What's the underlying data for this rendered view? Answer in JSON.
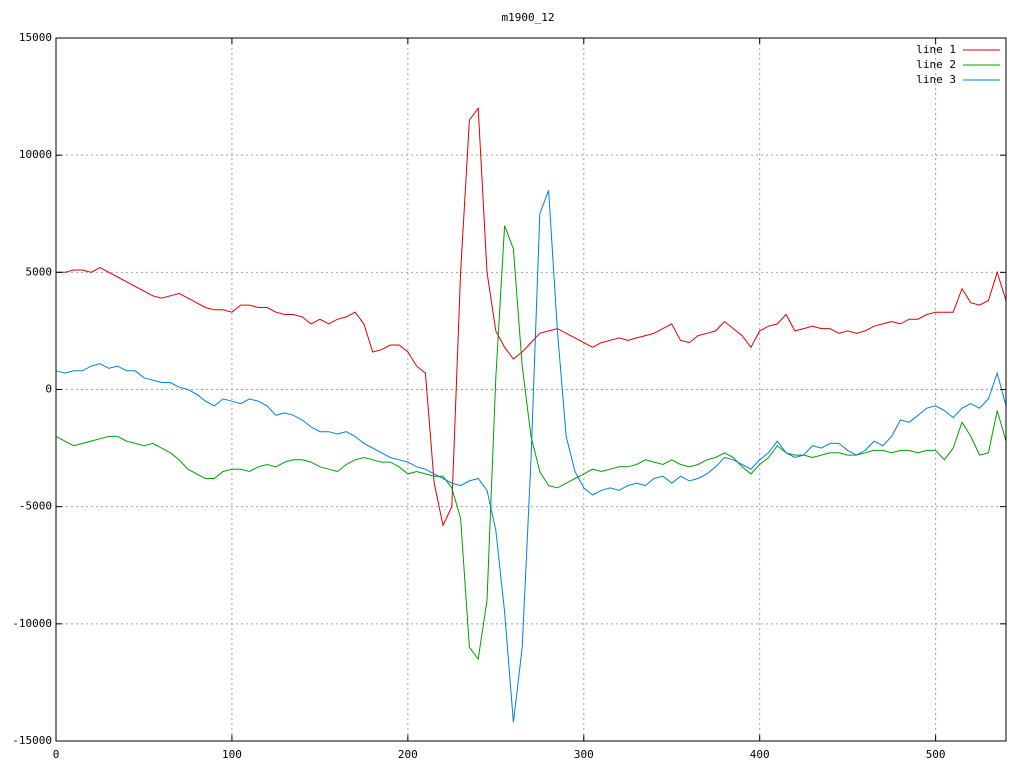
{
  "chart_data": {
    "type": "line",
    "title": "m1900_12",
    "x": [
      0,
      5,
      10,
      15,
      20,
      25,
      30,
      35,
      40,
      45,
      50,
      55,
      60,
      65,
      70,
      75,
      80,
      85,
      90,
      95,
      100,
      105,
      110,
      115,
      120,
      125,
      130,
      135,
      140,
      145,
      150,
      155,
      160,
      165,
      170,
      175,
      180,
      185,
      190,
      195,
      200,
      205,
      210,
      215,
      220,
      225,
      230,
      235,
      240,
      245,
      250,
      255,
      260,
      265,
      270,
      275,
      280,
      285,
      290,
      295,
      300,
      305,
      310,
      315,
      320,
      325,
      330,
      335,
      340,
      345,
      350,
      355,
      360,
      365,
      370,
      375,
      380,
      385,
      390,
      395,
      400,
      405,
      410,
      415,
      420,
      425,
      430,
      435,
      440,
      445,
      450,
      455,
      460,
      465,
      470,
      475,
      480,
      485,
      490,
      495,
      500,
      505,
      510,
      515,
      520,
      525,
      530,
      535,
      540
    ],
    "series": [
      {
        "name": "line 1",
        "color": "#e00000",
        "values": [
          5000,
          5000,
          5100,
          5100,
          5000,
          5200,
          5000,
          4800,
          4600,
          4400,
          4200,
          4000,
          3900,
          4000,
          4100,
          3900,
          3700,
          3500,
          3400,
          3400,
          3300,
          3600,
          3600,
          3500,
          3500,
          3300,
          3200,
          3200,
          3100,
          2800,
          3000,
          2800,
          3000,
          3100,
          3300,
          2800,
          1600,
          1700,
          1900,
          1900,
          1600,
          1000,
          700,
          -4000,
          -5800,
          -5000,
          5000,
          11500,
          12000,
          5000,
          2500,
          1800,
          1300,
          1600,
          2000,
          2400,
          2500,
          2600,
          2400,
          2200,
          2000,
          1800,
          2000,
          2100,
          2200,
          2100,
          2200,
          2300,
          2400,
          2600,
          2800,
          2100,
          2000,
          2300,
          2400,
          2500,
          2900,
          2600,
          2300,
          1800,
          2500,
          2700,
          2800,
          3200,
          2500,
          2600,
          2700,
          2600,
          2600,
          2400,
          2500,
          2400,
          2500,
          2700,
          2800,
          2900,
          2800,
          3000,
          3000,
          3200,
          3300,
          3300,
          3300,
          4300,
          3700,
          3600,
          3800,
          5000,
          3800
        ]
      },
      {
        "name": "line 2",
        "color": "#00a000",
        "values": [
          -2000,
          -2200,
          -2400,
          -2300,
          -2200,
          -2100,
          -2000,
          -2000,
          -2200,
          -2300,
          -2400,
          -2300,
          -2500,
          -2700,
          -3000,
          -3400,
          -3600,
          -3800,
          -3800,
          -3500,
          -3400,
          -3400,
          -3500,
          -3300,
          -3200,
          -3300,
          -3100,
          -3000,
          -3000,
          -3100,
          -3300,
          -3400,
          -3500,
          -3200,
          -3000,
          -2900,
          -3000,
          -3100,
          -3100,
          -3300,
          -3600,
          -3500,
          -3600,
          -3700,
          -3700,
          -4200,
          -5500,
          -11000,
          -11500,
          -9000,
          500,
          7000,
          6000,
          1000,
          -2000,
          -3500,
          -4100,
          -4200,
          -4000,
          -3800,
          -3600,
          -3400,
          -3500,
          -3400,
          -3300,
          -3300,
          -3200,
          -3000,
          -3100,
          -3200,
          -3000,
          -3200,
          -3300,
          -3200,
          -3000,
          -2900,
          -2700,
          -2900,
          -3300,
          -3600,
          -3200,
          -2900,
          -2400,
          -2700,
          -2800,
          -2800,
          -2900,
          -2800,
          -2700,
          -2700,
          -2800,
          -2800,
          -2700,
          -2600,
          -2600,
          -2700,
          -2600,
          -2600,
          -2700,
          -2600,
          -2600,
          -3000,
          -2500,
          -1400,
          -2000,
          -2800,
          -2700,
          -900,
          -2200
        ]
      },
      {
        "name": "line 3",
        "color": "#0080e0",
        "values": [
          800,
          700,
          800,
          800,
          1000,
          1100,
          900,
          1000,
          800,
          800,
          500,
          400,
          300,
          300,
          100,
          0,
          -200,
          -500,
          -700,
          -400,
          -500,
          -600,
          -400,
          -500,
          -700,
          -1100,
          -1000,
          -1100,
          -1300,
          -1600,
          -1800,
          -1800,
          -1900,
          -1800,
          -2000,
          -2300,
          -2500,
          -2700,
          -2900,
          -3000,
          -3100,
          -3300,
          -3400,
          -3600,
          -3800,
          -4000,
          -4100,
          -3900,
          -3800,
          -4300,
          -6000,
          -9500,
          -14200,
          -11000,
          -3000,
          7500,
          8500,
          2500,
          -2000,
          -3500,
          -4200,
          -4500,
          -4300,
          -4200,
          -4300,
          -4100,
          -4000,
          -4100,
          -3800,
          -3700,
          -4000,
          -3700,
          -3900,
          -3800,
          -3600,
          -3300,
          -2900,
          -3000,
          -3200,
          -3400,
          -3000,
          -2700,
          -2200,
          -2700,
          -2900,
          -2800,
          -2400,
          -2500,
          -2300,
          -2300,
          -2600,
          -2800,
          -2600,
          -2200,
          -2400,
          -2000,
          -1300,
          -1400,
          -1100,
          -800,
          -700,
          -900,
          -1200,
          -800,
          -600,
          -800,
          -400,
          700,
          -700
        ]
      }
    ],
    "xlim": [
      0,
      540
    ],
    "xticks": [
      0,
      100,
      200,
      300,
      400,
      500
    ],
    "ylim": [
      -15000,
      15000
    ],
    "yticks": [
      -15000,
      -10000,
      -5000,
      0,
      5000,
      10000,
      15000
    ],
    "grid": true,
    "legend": "top-right"
  }
}
